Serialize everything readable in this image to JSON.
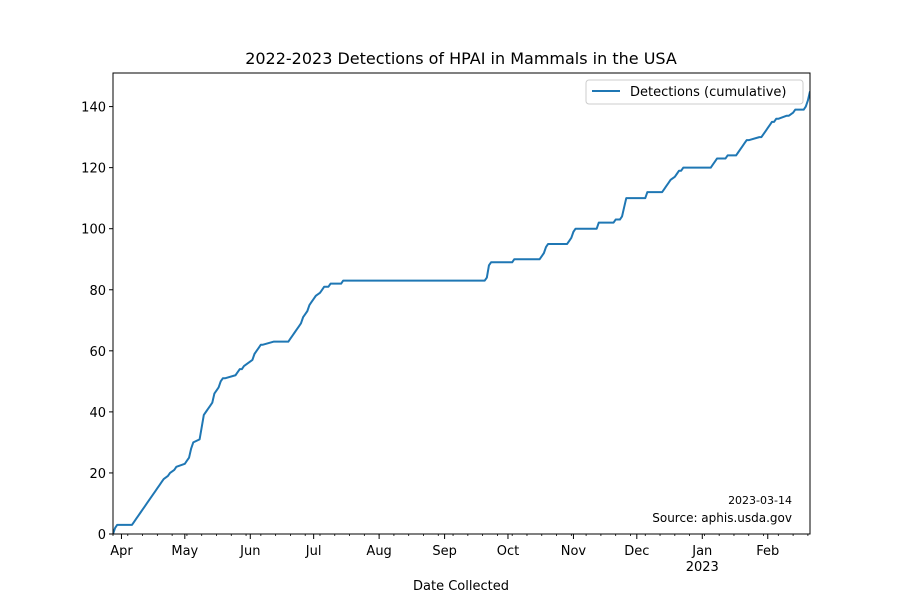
{
  "chart_data": {
    "type": "line",
    "title": "2022-2023 Detections of HPAI in Mammals in the USA",
    "xlabel": "Date Collected",
    "ylabel": "",
    "xlim": [
      "2022-03-28",
      "2023-02-21"
    ],
    "ylim": [
      0,
      151
    ],
    "yticks": [
      0,
      20,
      40,
      60,
      80,
      100,
      120,
      140
    ],
    "xticks": [
      {
        "date": "2022-04-01",
        "label": "Apr"
      },
      {
        "date": "2022-05-01",
        "label": "May"
      },
      {
        "date": "2022-06-01",
        "label": "Jun"
      },
      {
        "date": "2022-07-01",
        "label": "Jul"
      },
      {
        "date": "2022-08-01",
        "label": "Aug"
      },
      {
        "date": "2022-09-01",
        "label": "Sep"
      },
      {
        "date": "2022-10-01",
        "label": "Oct"
      },
      {
        "date": "2022-11-01",
        "label": "Nov"
      },
      {
        "date": "2022-12-01",
        "label": "Dec"
      },
      {
        "date": "2023-01-01",
        "label": "Jan"
      },
      {
        "date": "2023-02-01",
        "label": "Feb"
      }
    ],
    "xtick_sublabel": {
      "date": "2023-01-01",
      "label": "2023"
    },
    "grid": false,
    "legend": {
      "position": "top-right"
    },
    "annotations": [
      "2023-03-14",
      "Source: aphis.usda.gov"
    ],
    "series": [
      {
        "name": "Detections (cumulative)",
        "color": "#1f77b4",
        "x": [
          "2022-03-28",
          "2022-03-29",
          "2022-03-30",
          "2022-04-06",
          "2022-04-07",
          "2022-04-08",
          "2022-04-09",
          "2022-04-10",
          "2022-04-11",
          "2022-04-12",
          "2022-04-13",
          "2022-04-16",
          "2022-04-17",
          "2022-04-18",
          "2022-04-19",
          "2022-04-20",
          "2022-04-21",
          "2022-04-23",
          "2022-04-24",
          "2022-04-26",
          "2022-04-27",
          "2022-05-01",
          "2022-05-02",
          "2022-05-03",
          "2022-05-04",
          "2022-05-05",
          "2022-05-08",
          "2022-05-09",
          "2022-05-10",
          "2022-05-11",
          "2022-05-12",
          "2022-05-13",
          "2022-05-14",
          "2022-05-15",
          "2022-05-17",
          "2022-05-18",
          "2022-05-19",
          "2022-05-20",
          "2022-05-25",
          "2022-05-26",
          "2022-05-27",
          "2022-05-28",
          "2022-05-29",
          "2022-06-02",
          "2022-06-03",
          "2022-06-04",
          "2022-06-05",
          "2022-06-06",
          "2022-06-07",
          "2022-06-12",
          "2022-06-13",
          "2022-06-19",
          "2022-06-20",
          "2022-06-21",
          "2022-06-22",
          "2022-06-23",
          "2022-06-24",
          "2022-06-25",
          "2022-06-26",
          "2022-06-27",
          "2022-06-28",
          "2022-06-29",
          "2022-06-30",
          "2022-07-01",
          "2022-07-02",
          "2022-07-04",
          "2022-07-05",
          "2022-07-06",
          "2022-07-07",
          "2022-07-08",
          "2022-07-09",
          "2022-07-10",
          "2022-07-11",
          "2022-07-14",
          "2022-07-15",
          "2022-07-17",
          "2022-07-18",
          "2022-07-23",
          "2022-07-24",
          "2022-09-20",
          "2022-09-21",
          "2022-09-22",
          "2022-09-23",
          "2022-10-03",
          "2022-10-04",
          "2022-10-16",
          "2022-10-17",
          "2022-10-18",
          "2022-10-19",
          "2022-10-20",
          "2022-10-29",
          "2022-10-30",
          "2022-10-31",
          "2022-11-01",
          "2022-11-02",
          "2022-11-12",
          "2022-11-13",
          "2022-11-20",
          "2022-11-21",
          "2022-11-23",
          "2022-11-24",
          "2022-11-25",
          "2022-11-26",
          "2022-12-05",
          "2022-12-06",
          "2022-12-13",
          "2022-12-14",
          "2022-12-15",
          "2022-12-16",
          "2022-12-17",
          "2022-12-19",
          "2022-12-20",
          "2022-12-21",
          "2022-12-22",
          "2022-12-23",
          "2023-01-05",
          "2023-01-06",
          "2023-01-07",
          "2023-01-08",
          "2023-01-12",
          "2023-01-13",
          "2023-01-17",
          "2023-01-18",
          "2023-01-19",
          "2023-01-20",
          "2023-01-21",
          "2023-01-22",
          "2023-01-23",
          "2023-01-28",
          "2023-01-29",
          "2023-01-30",
          "2023-01-31",
          "2023-02-01",
          "2023-02-02",
          "2023-02-03",
          "2023-02-04",
          "2023-02-05",
          "2023-02-06",
          "2023-02-10",
          "2023-02-11",
          "2023-02-13",
          "2023-02-14",
          "2023-02-18",
          "2023-02-19",
          "2023-02-20",
          "2023-02-21"
        ],
        "y": [
          0,
          2,
          3,
          3,
          4,
          5,
          6,
          7,
          8,
          9,
          10,
          13,
          14,
          15,
          16,
          17,
          18,
          19,
          20,
          21,
          22,
          23,
          24,
          25,
          28,
          30,
          31,
          35,
          39,
          40,
          41,
          42,
          43,
          46,
          48,
          50,
          51,
          51,
          52,
          53,
          54,
          54,
          55,
          57,
          59,
          60,
          61,
          62,
          62,
          63,
          63,
          63,
          64,
          65,
          66,
          67,
          68,
          69,
          71,
          72,
          73,
          75,
          76,
          77,
          78,
          79,
          80,
          81,
          81,
          81,
          82,
          82,
          82,
          82,
          83,
          83,
          83,
          83,
          83,
          83,
          84,
          88,
          89,
          89,
          90,
          90,
          91,
          92,
          94,
          95,
          95,
          96,
          97,
          99,
          100,
          100,
          102,
          102,
          103,
          103,
          104,
          107,
          110,
          110,
          112,
          112,
          113,
          114,
          115,
          116,
          117,
          118,
          119,
          119,
          120,
          120,
          121,
          122,
          123,
          123,
          124,
          124,
          125,
          126,
          127,
          128,
          129,
          129,
          130,
          130,
          131,
          132,
          133,
          134,
          135,
          135,
          136,
          136,
          137,
          137,
          138,
          139,
          139,
          140,
          142,
          145
        ]
      }
    ]
  }
}
